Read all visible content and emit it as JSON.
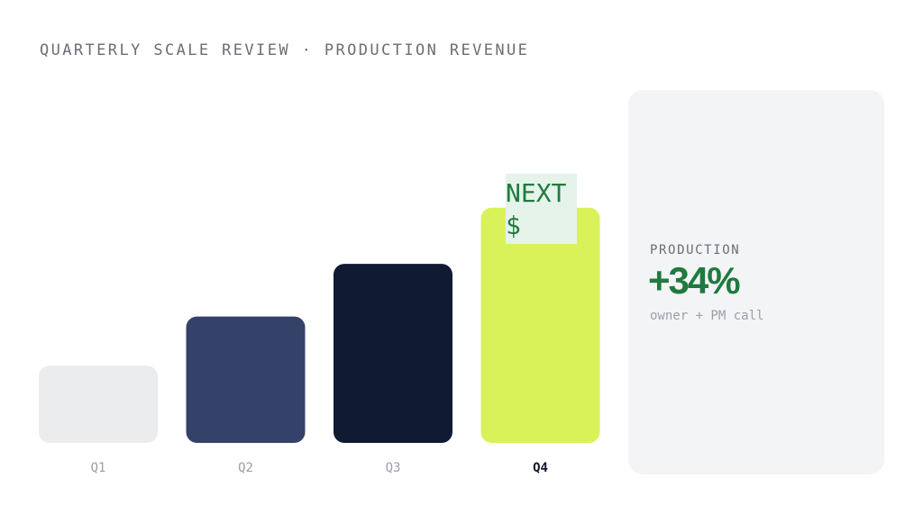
{
  "header": {
    "title": "QUARTERLY SCALE REVIEW · PRODUCTION REVENUE"
  },
  "chart_data": {
    "type": "bar",
    "categories": [
      "Q1",
      "Q2",
      "Q3",
      "Q4"
    ],
    "values": [
      22,
      36,
      51,
      67
    ],
    "highlight_category": "Q4",
    "bar_colors": [
      "#ebecee",
      "#34426a",
      "#111a33",
      "#daf25a"
    ],
    "bar_annotation": {
      "category": "Q4",
      "text_lines": [
        "NEXT",
        "$"
      ]
    },
    "grid": false,
    "legend": "none"
  },
  "summary_card": {
    "label": "PRODUCTION",
    "value": "+34%",
    "note": "owner + PM call",
    "value_color": "#1f7a3f"
  }
}
